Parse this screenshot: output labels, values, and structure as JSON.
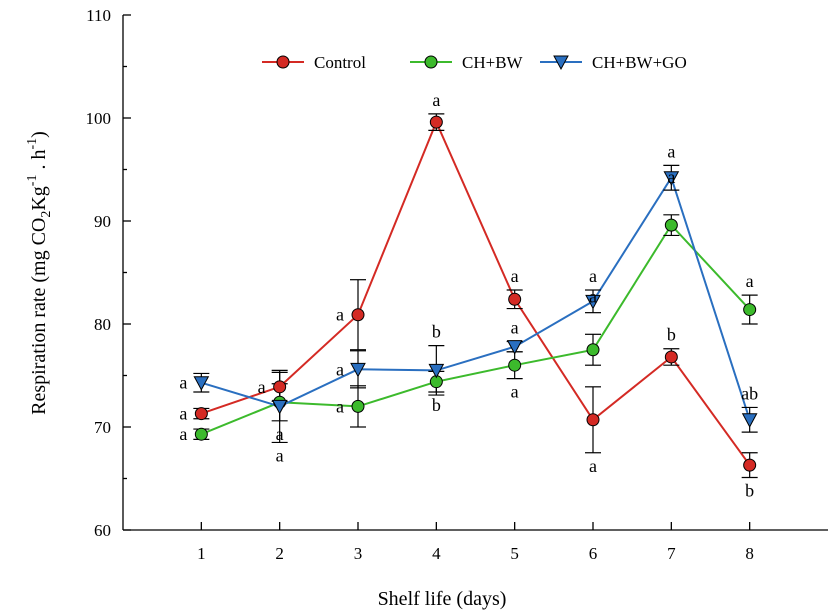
{
  "chart_data": {
    "type": "line",
    "xlabel": "Shelf life (days)",
    "ylabel": "Respiration rate (mg CO2Kg-1 . h-1)",
    "x": [
      1,
      2,
      3,
      4,
      5,
      6,
      7,
      8
    ],
    "xlim": [
      0,
      9
    ],
    "ylim": [
      60,
      110
    ],
    "yticks": [
      60,
      70,
      80,
      90,
      100,
      110
    ],
    "legend_position": "top",
    "series": [
      {
        "name": "Control",
        "color": "#d42a24",
        "marker": "circle",
        "values": [
          71.3,
          73.9,
          80.9,
          99.6,
          82.4,
          70.7,
          76.8,
          66.3
        ],
        "errors": [
          0.5,
          1.4,
          3.4,
          0.8,
          0.9,
          3.2,
          0.8,
          1.2
        ],
        "labels": [
          "a",
          "a",
          "a",
          "a",
          "a",
          "a",
          "b",
          "b"
        ]
      },
      {
        "name": "CH+BW",
        "color": "#3cba2c",
        "marker": "circle",
        "values": [
          69.3,
          72.4,
          72.0,
          74.4,
          76.0,
          77.5,
          89.6,
          81.4
        ],
        "errors": [
          0.5,
          1.8,
          2.0,
          1.0,
          1.3,
          1.5,
          1.0,
          1.4
        ],
        "labels": [
          "a",
          "a",
          "a",
          "b",
          "a",
          "a",
          "a",
          "a"
        ]
      },
      {
        "name": "CH+BW+GO",
        "color": "#2a6fc0",
        "marker": "triangle-down",
        "values": [
          74.3,
          72.0,
          75.6,
          75.5,
          77.8,
          82.2,
          94.2,
          70.7
        ],
        "errors": [
          0.9,
          3.5,
          1.8,
          2.4,
          0.5,
          1.1,
          1.2,
          1.2
        ],
        "labels": [
          "a",
          "a",
          "a",
          "b",
          "a",
          "a",
          "a",
          "ab"
        ]
      }
    ]
  }
}
